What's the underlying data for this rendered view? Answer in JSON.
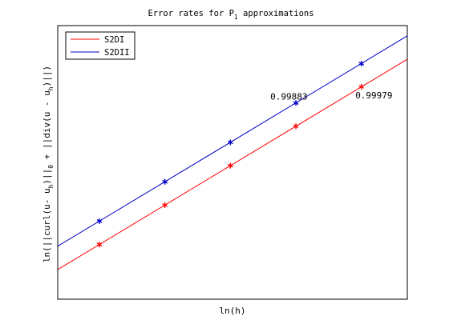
{
  "chart_data": {
    "type": "line",
    "title": {
      "main": "Error rates for P",
      "sub": "1",
      "rest": " approximations"
    },
    "xlabel": "ln(h)",
    "ylabel": [
      {
        "t": "ln(||curl(u- u",
        "s": false
      },
      {
        "t": "h",
        "s": "sub"
      },
      {
        "t": ")||",
        "s": false
      },
      {
        "t": "0",
        "s": "sub"
      },
      {
        "t": " + ||div(u - u",
        "s": false
      },
      {
        "t": "h",
        "s": "sub"
      },
      {
        "t": ")||)",
        "s": false
      }
    ],
    "xlim": [
      -4.6,
      -0.9
    ],
    "ylim": [
      -2.4,
      2.4
    ],
    "grid": false,
    "legend_position": "top-left",
    "series": [
      {
        "name": "S2DI",
        "color": "#ff0000",
        "x": [
          -4.1589,
          -3.4657,
          -2.7726,
          -2.0794,
          -1.3863
        ],
        "y": [
          -1.44,
          -0.75,
          -0.058,
          0.634,
          1.327
        ],
        "line_x": [
          -4.6,
          -0.9
        ],
        "line_y": [
          -1.88,
          1.81
        ],
        "slope_label": "0.99979",
        "slope_label_at": [
          -1.45,
          1.12
        ]
      },
      {
        "name": "S2DII",
        "color": "#0000cc",
        "x": [
          -4.1589,
          -3.4657,
          -2.7726,
          -2.0794,
          -1.3863
        ],
        "y": [
          -1.03,
          -0.34,
          0.352,
          1.042,
          1.732
        ],
        "line_x": [
          -4.6,
          -0.9
        ],
        "line_y": [
          -1.47,
          2.22
        ],
        "slope_label": "0.99883",
        "slope_label_at": [
          -2.35,
          1.1
        ]
      }
    ]
  }
}
